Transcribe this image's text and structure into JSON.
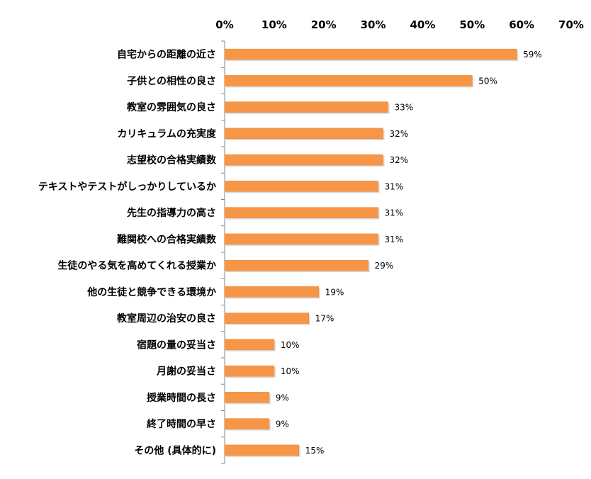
{
  "chart_data": {
    "type": "bar",
    "orientation": "horizontal",
    "categories": [
      "自宅からの距離の近さ",
      "子供との相性の良さ",
      "教室の雰囲気の良さ",
      "カリキュラムの充実度",
      "志望校の合格実績数",
      "テキストやテストがしっかりしているか",
      "先生の指導力の高さ",
      "難関校への合格実績数",
      "生徒のやる気を高めてくれる授業か",
      "他の生徒と競争できる環境か",
      "教室周辺の治安の良さ",
      "宿題の量の妥当さ",
      "月謝の妥当さ",
      "授業時間の長さ",
      "終了時間の早さ",
      "その他 (具体的に)"
    ],
    "values": [
      59,
      50,
      33,
      32,
      32,
      31,
      31,
      31,
      29,
      19,
      17,
      10,
      10,
      9,
      9,
      15
    ],
    "data_labels": [
      "59%",
      "50%",
      "33%",
      "32%",
      "32%",
      "31%",
      "31%",
      "31%",
      "29%",
      "19%",
      "17%",
      "10%",
      "10%",
      "9%",
      "9%",
      "15%"
    ],
    "xlim": [
      0,
      70
    ],
    "x_ticks": [
      0,
      10,
      20,
      30,
      40,
      50,
      60,
      70
    ],
    "x_tick_labels": [
      "0%",
      "10%",
      "20%",
      "30%",
      "40%",
      "50%",
      "60%",
      "70%"
    ],
    "axis_position": "top",
    "grid": false,
    "legend": "none",
    "colors": {
      "bar": "#F79646",
      "bar_border": "#E8863A",
      "axis": "#868686"
    }
  }
}
